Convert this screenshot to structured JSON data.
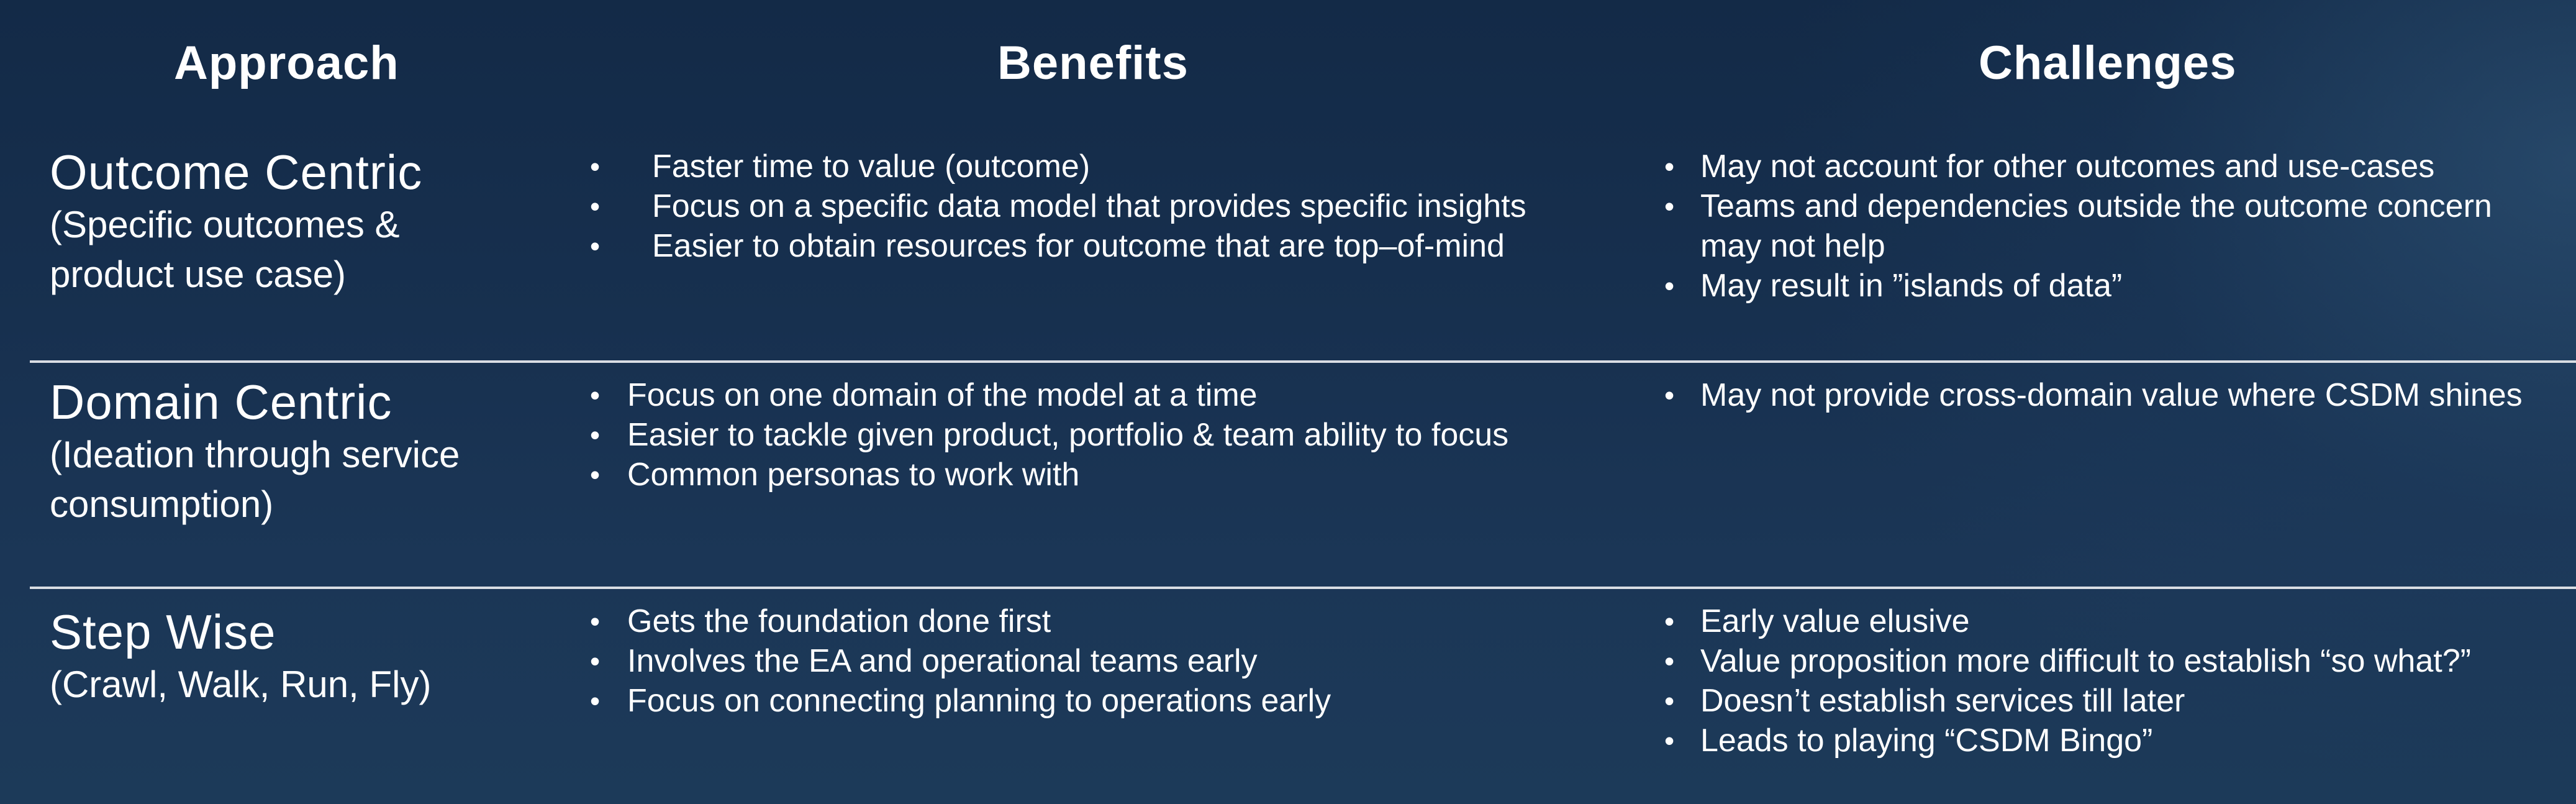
{
  "headers": {
    "approach": "Approach",
    "benefits": "Benefits",
    "challenges": "Challenges"
  },
  "rows": [
    {
      "title": "Outcome Centric",
      "subtitle": "(Specific outcomes &\nproduct use case)",
      "benefits": [
        "Faster time to value (outcome)",
        "Focus on a specific data model that provides specific insights",
        "Easier to obtain resources for outcome that are top–of-mind"
      ],
      "challenges": [
        "May not account for other outcomes and use-cases",
        "Teams and dependencies outside the outcome concern may not help",
        "May result in ”islands of data”"
      ]
    },
    {
      "title": "Domain Centric",
      "subtitle": "(Ideation through service\nconsumption)",
      "benefits": [
        "Focus on one domain of the model at a time",
        "Easier to tackle given product, portfolio & team ability to focus",
        "Common personas to work with"
      ],
      "challenges": [
        "May not provide cross-domain value where CSDM shines"
      ]
    },
    {
      "title": "Step Wise",
      "subtitle": "(Crawl, Walk, Run, Fly)",
      "benefits": [
        "Gets the foundation done first",
        "Involves the EA and operational teams early",
        "Focus on connecting planning to operations early"
      ],
      "challenges": [
        "Early value elusive",
        "Value proposition more difficult to establish “so what?”",
        "Doesn’t establish services till later",
        "Leads to playing “CSDM Bingo”"
      ]
    }
  ]
}
